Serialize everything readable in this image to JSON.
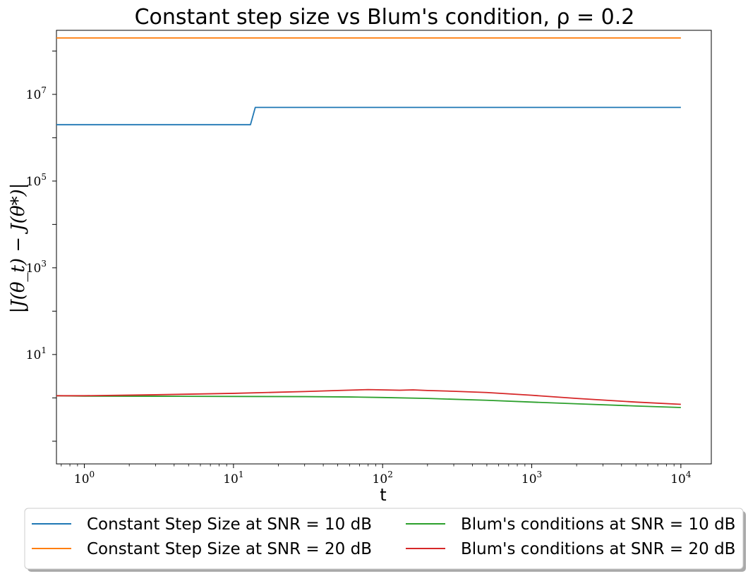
{
  "chart_data": {
    "type": "line",
    "title": "Constant step size vs Blum's condition, ρ = 0.2",
    "xlabel": "t",
    "ylabel": "|J(θ_t) − J(θ*)|",
    "xscale": "log",
    "yscale": "log",
    "xlim": [
      0.65,
      16000
    ],
    "ylim": [
      0.03,
      300000000
    ],
    "x_ticks": [
      {
        "base": "10",
        "exp": "0",
        "value": 1
      },
      {
        "base": "10",
        "exp": "1",
        "value": 10
      },
      {
        "base": "10",
        "exp": "2",
        "value": 100
      },
      {
        "base": "10",
        "exp": "3",
        "value": 1000
      },
      {
        "base": "10",
        "exp": "4",
        "value": 10000
      }
    ],
    "y_ticks": [
      {
        "base": "10",
        "exp": "1",
        "value": 10
      },
      {
        "base": "10",
        "exp": "3",
        "value": 1000
      },
      {
        "base": "10",
        "exp": "5",
        "value": 100000
      },
      {
        "base": "10",
        "exp": "7",
        "value": 10000000
      }
    ],
    "legend_position": "below",
    "series": [
      {
        "name": "Constant Step Size at SNR = 10 dB",
        "color": "#1f77b4",
        "x": [
          0.65,
          13,
          14,
          10000
        ],
        "y": [
          2000000,
          2000000,
          5000000,
          5000000
        ]
      },
      {
        "name": "Constant Step Size at SNR = 20 dB",
        "color": "#ff7f0e",
        "x": [
          0.65,
          10000
        ],
        "y": [
          200000000,
          200000000
        ]
      },
      {
        "name": "Blum's conditions at SNR = 10 dB",
        "color": "#2ca02c",
        "x": [
          0.65,
          1,
          3,
          10,
          30,
          60,
          100,
          200,
          500,
          1000,
          2000,
          5000,
          10000
        ],
        "y": [
          1.12,
          1.1,
          1.09,
          1.08,
          1.07,
          1.05,
          1.02,
          0.97,
          0.88,
          0.8,
          0.73,
          0.65,
          0.6
        ]
      },
      {
        "name": "Blum's conditions at SNR = 20 dB",
        "color": "#d62728",
        "x": [
          0.65,
          1,
          3,
          10,
          20,
          30,
          50,
          80,
          100,
          130,
          160,
          200,
          300,
          500,
          1000,
          2000,
          5000,
          10000
        ],
        "y": [
          1.12,
          1.12,
          1.18,
          1.27,
          1.35,
          1.4,
          1.48,
          1.55,
          1.53,
          1.5,
          1.53,
          1.48,
          1.42,
          1.33,
          1.15,
          0.97,
          0.8,
          0.71
        ]
      }
    ]
  }
}
